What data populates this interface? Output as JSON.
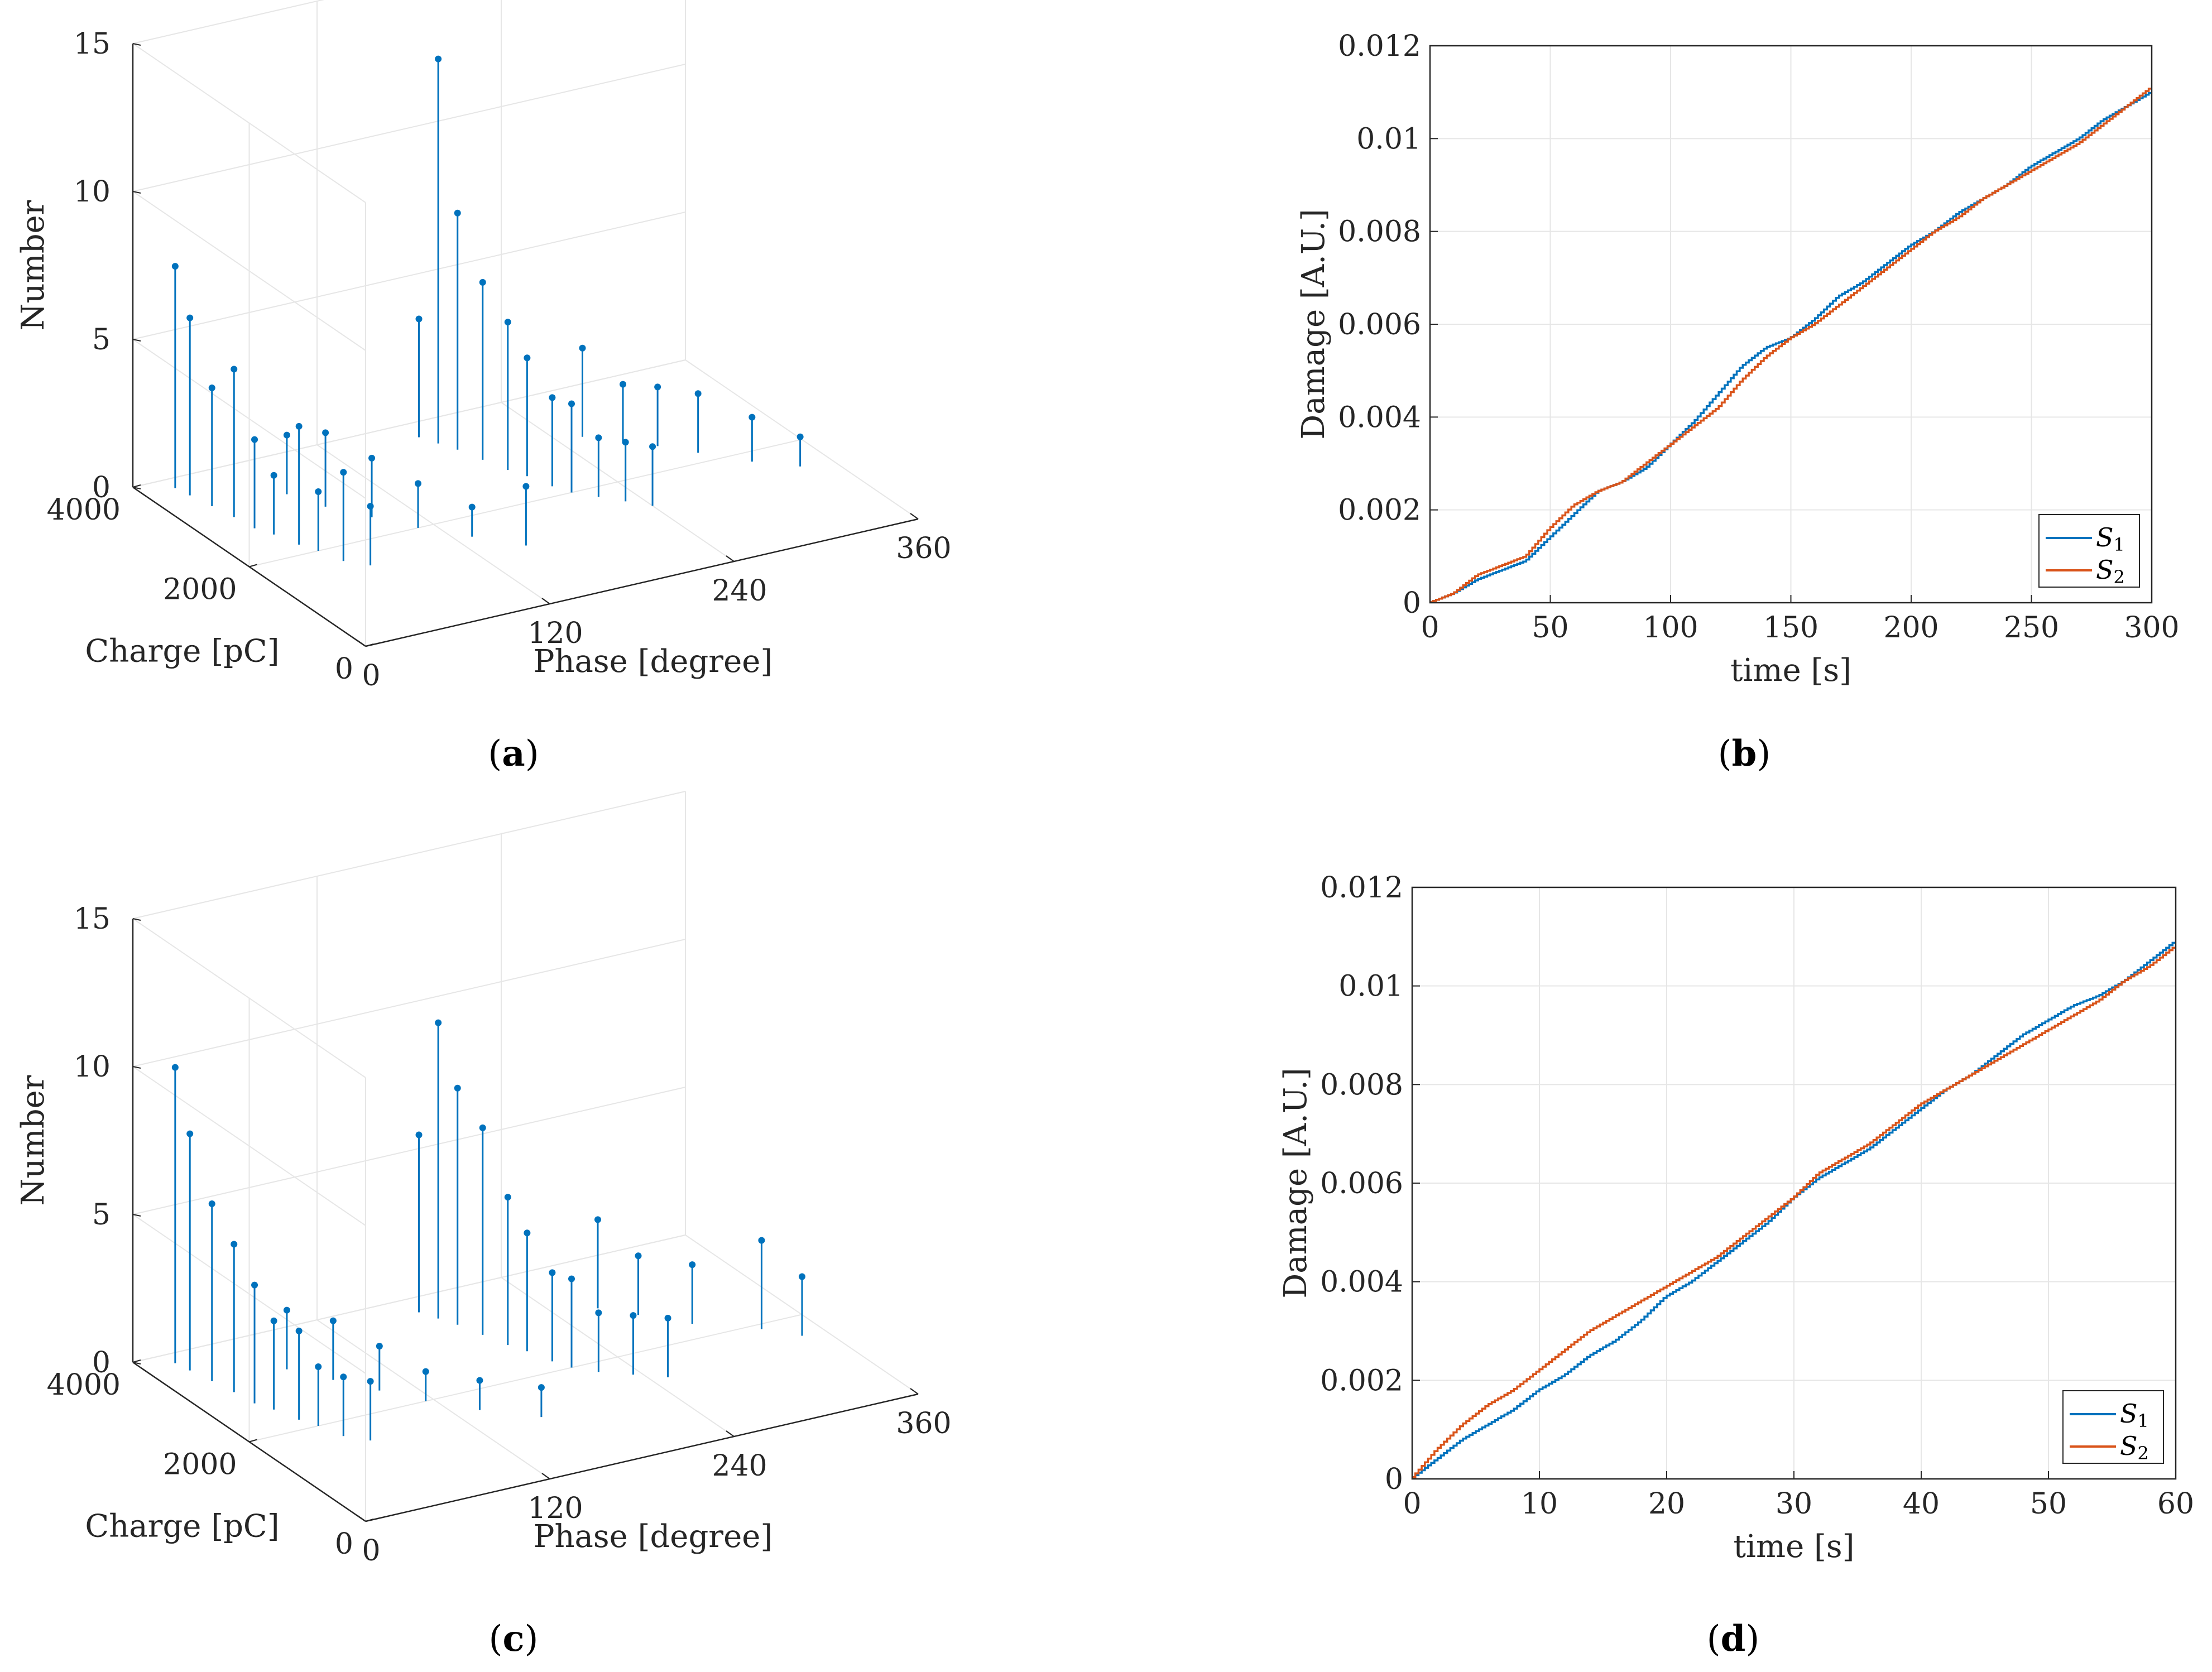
{
  "captions": {
    "a": "a",
    "b": "b",
    "c": "c",
    "d": "d"
  },
  "colors": {
    "s1": "#0072bd",
    "s2": "#d95319",
    "grid": "#e6e6e6",
    "axis": "#262626"
  },
  "chart_data": [
    {
      "panel": "a",
      "type": "stem3d",
      "zlabel": "Number",
      "ylabel": "Charge [pC]",
      "xlabel": "Phase [degree]",
      "x_ticks": [
        "0",
        "120",
        "240",
        "360"
      ],
      "y_ticks": [
        "0",
        "2000",
        "4000"
      ],
      "z_ticks": [
        "0",
        "5",
        "10",
        "15"
      ],
      "xlim": [
        0,
        360
      ],
      "ylim": [
        0,
        4000
      ],
      "zlim": [
        0,
        15
      ],
      "points": [
        [
          20,
          3800,
          7.5
        ],
        [
          22,
          3600,
          6
        ],
        [
          25,
          3300,
          4
        ],
        [
          28,
          3000,
          5
        ],
        [
          30,
          2700,
          3
        ],
        [
          35,
          2500,
          2
        ],
        [
          40,
          2200,
          4
        ],
        [
          45,
          2000,
          2
        ],
        [
          50,
          1700,
          3
        ],
        [
          60,
          1500,
          2
        ],
        [
          70,
          3200,
          2
        ],
        [
          80,
          2800,
          2.5
        ],
        [
          95,
          2400,
          2
        ],
        [
          110,
          2000,
          1.5
        ],
        [
          130,
          1600,
          1
        ],
        [
          150,
          1200,
          2
        ],
        [
          175,
          3700,
          4
        ],
        [
          180,
          3500,
          13
        ],
        [
          185,
          3300,
          8
        ],
        [
          190,
          3000,
          6
        ],
        [
          195,
          2700,
          5
        ],
        [
          200,
          2500,
          4
        ],
        [
          205,
          2200,
          3
        ],
        [
          210,
          2000,
          3
        ],
        [
          220,
          1800,
          2
        ],
        [
          230,
          1600,
          2
        ],
        [
          240,
          1400,
          2
        ],
        [
          255,
          3000,
          3
        ],
        [
          270,
          2700,
          2
        ],
        [
          285,
          2500,
          2
        ],
        [
          300,
          2200,
          2
        ],
        [
          320,
          1800,
          1.5
        ],
        [
          340,
          1500,
          1
        ]
      ]
    },
    {
      "panel": "b",
      "type": "line",
      "xlabel": "time [s]",
      "ylabel": "Damage [A.U.]",
      "x_ticks": [
        "0",
        "50",
        "100",
        "150",
        "200",
        "250",
        "300"
      ],
      "y_ticks": [
        "0",
        "0.002",
        "0.004",
        "0.006",
        "0.008",
        "0.01",
        "0.012"
      ],
      "xlim": [
        0,
        300
      ],
      "ylim": [
        0,
        0.012
      ],
      "legend": [
        "S1",
        "S2"
      ],
      "legend_labels": [
        {
          "main": "S",
          "sub": "1"
        },
        {
          "main": "S",
          "sub": "2"
        }
      ],
      "legend_position": "bottom-right",
      "series": [
        {
          "name": "S1",
          "x": [
            0,
            10,
            20,
            30,
            40,
            50,
            60,
            70,
            80,
            90,
            100,
            110,
            120,
            130,
            140,
            150,
            160,
            170,
            180,
            190,
            200,
            210,
            220,
            230,
            240,
            250,
            260,
            270,
            280,
            290,
            300
          ],
          "y": [
            0,
            0.0002,
            0.0005,
            0.0007,
            0.0009,
            0.0014,
            0.0019,
            0.0024,
            0.0026,
            0.0029,
            0.0034,
            0.0039,
            0.0045,
            0.0051,
            0.0055,
            0.0057,
            0.0061,
            0.0066,
            0.0069,
            0.0073,
            0.0077,
            0.008,
            0.0084,
            0.0087,
            0.009,
            0.0094,
            0.0097,
            0.01,
            0.0104,
            0.0107,
            0.011
          ]
        },
        {
          "name": "S2",
          "x": [
            0,
            10,
            20,
            30,
            40,
            50,
            60,
            70,
            80,
            90,
            100,
            110,
            120,
            130,
            140,
            150,
            160,
            170,
            180,
            190,
            200,
            210,
            220,
            230,
            240,
            250,
            260,
            270,
            280,
            290,
            300
          ],
          "y": [
            0,
            0.0002,
            0.0006,
            0.0008,
            0.001,
            0.0016,
            0.0021,
            0.0024,
            0.0026,
            0.003,
            0.0034,
            0.0038,
            0.0042,
            0.0048,
            0.0053,
            0.0057,
            0.006,
            0.0064,
            0.0068,
            0.0072,
            0.0076,
            0.008,
            0.0083,
            0.0087,
            0.009,
            0.0093,
            0.0096,
            0.0099,
            0.0103,
            0.0107,
            0.0111
          ]
        }
      ]
    },
    {
      "panel": "c",
      "type": "stem3d",
      "zlabel": "Number",
      "ylabel": "Charge [pC]",
      "xlabel": "Phase [degree]",
      "x_ticks": [
        "0",
        "120",
        "240",
        "360"
      ],
      "y_ticks": [
        "0",
        "2000",
        "4000"
      ],
      "z_ticks": [
        "0",
        "5",
        "10",
        "15"
      ],
      "xlim": [
        0,
        360
      ],
      "ylim": [
        0,
        4000
      ],
      "zlim": [
        0,
        15
      ],
      "points": [
        [
          20,
          3800,
          10
        ],
        [
          22,
          3600,
          8
        ],
        [
          25,
          3300,
          6
        ],
        [
          28,
          3000,
          5
        ],
        [
          30,
          2700,
          4
        ],
        [
          35,
          2500,
          3
        ],
        [
          40,
          2200,
          3
        ],
        [
          45,
          2000,
          2
        ],
        [
          50,
          1700,
          2
        ],
        [
          60,
          1500,
          2
        ],
        [
          70,
          3200,
          2
        ],
        [
          85,
          2800,
          2
        ],
        [
          100,
          2400,
          1.5
        ],
        [
          115,
          2000,
          1
        ],
        [
          135,
          1600,
          1
        ],
        [
          160,
          1200,
          1
        ],
        [
          175,
          3700,
          6
        ],
        [
          180,
          3500,
          10
        ],
        [
          185,
          3300,
          8
        ],
        [
          190,
          3000,
          7
        ],
        [
          195,
          2700,
          5
        ],
        [
          200,
          2500,
          4
        ],
        [
          205,
          2200,
          3
        ],
        [
          210,
          2000,
          3
        ],
        [
          220,
          1800,
          2
        ],
        [
          235,
          1600,
          2
        ],
        [
          250,
          1400,
          2
        ],
        [
          265,
          3000,
          3
        ],
        [
          280,
          2700,
          2
        ],
        [
          300,
          2300,
          2
        ],
        [
          330,
          1900,
          3
        ],
        [
          345,
          1600,
          2
        ]
      ]
    },
    {
      "panel": "d",
      "type": "line",
      "xlabel": "time [s]",
      "ylabel": "Damage [A.U.]",
      "x_ticks": [
        "0",
        "10",
        "20",
        "30",
        "40",
        "50",
        "60"
      ],
      "y_ticks": [
        "0",
        "0.002",
        "0.004",
        "0.006",
        "0.008",
        "0.01",
        "0.012"
      ],
      "xlim": [
        0,
        60
      ],
      "ylim": [
        0,
        0.012
      ],
      "legend": [
        "S1",
        "S2"
      ],
      "legend_labels": [
        {
          "main": "S",
          "sub": "1"
        },
        {
          "main": "S",
          "sub": "2"
        }
      ],
      "legend_position": "bottom-right",
      "series": [
        {
          "name": "S1",
          "x": [
            0,
            2,
            4,
            6,
            8,
            10,
            12,
            14,
            16,
            18,
            20,
            22,
            24,
            26,
            28,
            30,
            32,
            34,
            36,
            38,
            40,
            42,
            44,
            46,
            48,
            50,
            52,
            54,
            56,
            58,
            60
          ],
          "y": [
            0,
            0.0004,
            0.0008,
            0.0011,
            0.0014,
            0.0018,
            0.0021,
            0.0025,
            0.0028,
            0.0032,
            0.0037,
            0.004,
            0.0044,
            0.0048,
            0.0052,
            0.0057,
            0.0061,
            0.0064,
            0.0067,
            0.0071,
            0.0075,
            0.0079,
            0.0082,
            0.0086,
            0.009,
            0.0093,
            0.0096,
            0.0098,
            0.0101,
            0.0105,
            0.0109
          ]
        },
        {
          "name": "S2",
          "x": [
            0,
            2,
            4,
            6,
            8,
            10,
            12,
            14,
            16,
            18,
            20,
            22,
            24,
            26,
            28,
            30,
            32,
            34,
            36,
            38,
            40,
            42,
            44,
            46,
            48,
            50,
            52,
            54,
            56,
            58,
            60
          ],
          "y": [
            0,
            0.0006,
            0.0011,
            0.0015,
            0.0018,
            0.0022,
            0.0026,
            0.003,
            0.0033,
            0.0036,
            0.0039,
            0.0042,
            0.0045,
            0.0049,
            0.0053,
            0.0057,
            0.0062,
            0.0065,
            0.0068,
            0.0072,
            0.0076,
            0.0079,
            0.0082,
            0.0085,
            0.0088,
            0.0091,
            0.0094,
            0.0097,
            0.0101,
            0.0104,
            0.0108
          ]
        }
      ]
    }
  ]
}
